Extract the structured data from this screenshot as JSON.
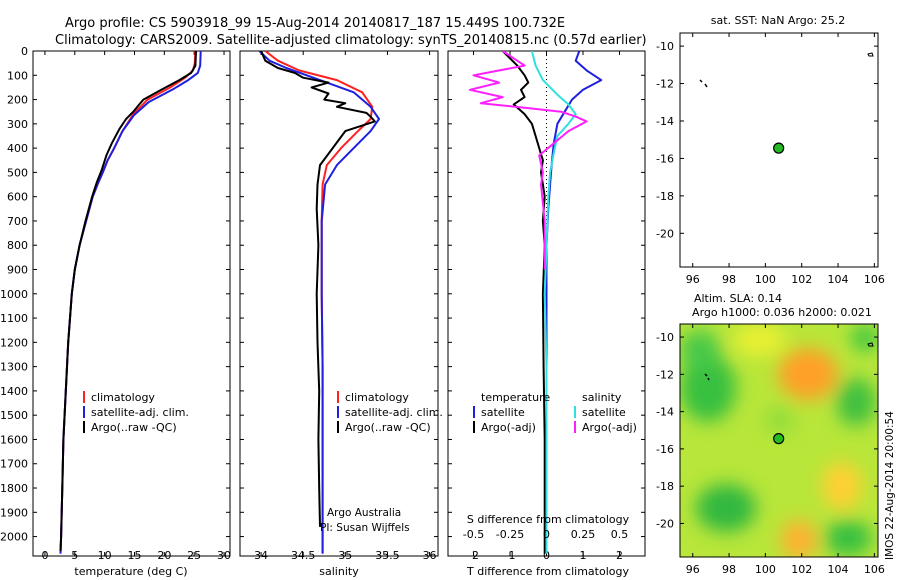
{
  "title": {
    "line1": "Argo profile: CS 5903918_99 15-Aug-2014 20140817_187 15.449S 100.732E",
    "line2": "Climatology: CARS2009. Satellite-adjusted climatology: synTS_20140815.nc (0.57d earlier)"
  },
  "colors": {
    "climatology": "#ff2020",
    "satellite": "#1f1fe0",
    "argo": "#000000",
    "sal_satellite": "#30e0e0",
    "sal_argo": "#ff20ff",
    "argo_marker": "#22bb22"
  },
  "chart_data": [
    {
      "id": "temperature",
      "type": "line",
      "xlabel": "temperature (deg C)",
      "ylabel": "",
      "xlim": [
        -2,
        31
      ],
      "ylim": [
        2080,
        0
      ],
      "xticks": [
        "0",
        "5",
        "10",
        "15",
        "20",
        "25",
        "30"
      ],
      "yticks": [
        "0",
        "100",
        "200",
        "300",
        "400",
        "500",
        "600",
        "700",
        "800",
        "900",
        "1000",
        "1100",
        "1200",
        "1300",
        "1400",
        "1500",
        "1600",
        "1700",
        "1800",
        "1900",
        "2000"
      ],
      "legend": [
        "climatology",
        "satellite-adj. clim.",
        "Argo(..raw -QC)"
      ],
      "series": [
        {
          "name": "climatology",
          "color_key": "climatology",
          "x": [
            25.2,
            25.1,
            24.8,
            23.5,
            21.0,
            17.2,
            14.8,
            13.0,
            11.6,
            10.5,
            9.7,
            8.8,
            8.0,
            6.9,
            5.8,
            5.0,
            4.5,
            3.9,
            3.5,
            3.1,
            2.9,
            2.7,
            2.6
          ],
          "y": [
            0,
            50,
            80,
            110,
            150,
            200,
            260,
            330,
            400,
            450,
            500,
            550,
            600,
            700,
            800,
            900,
            1000,
            1200,
            1400,
            1600,
            1800,
            2000,
            2070
          ]
        },
        {
          "name": "satellite-adj. clim.",
          "color_key": "satellite",
          "x": [
            26.1,
            26.0,
            25.6,
            24.0,
            21.3,
            17.4,
            14.9,
            13.0,
            11.6,
            10.5,
            9.7,
            8.8,
            8.0,
            6.9,
            5.8,
            5.0,
            4.5,
            3.9,
            3.5,
            3.1,
            2.9,
            2.7,
            2.6
          ],
          "y": [
            0,
            60,
            90,
            120,
            160,
            210,
            265,
            330,
            400,
            450,
            500,
            550,
            600,
            700,
            800,
            900,
            1000,
            1200,
            1400,
            1600,
            1800,
            2000,
            2070
          ]
        },
        {
          "name": "Argo(..raw -QC)",
          "color_key": "argo",
          "x": [
            25.3,
            25.2,
            24.5,
            22.5,
            19.5,
            16.5,
            15.8,
            14.8,
            13.6,
            12.5,
            11.2,
            10.3,
            9.5,
            8.7,
            7.9,
            6.8,
            5.8,
            5.0,
            4.5,
            3.9,
            3.5,
            3.1,
            2.9,
            2.7,
            2.6
          ],
          "y": [
            0,
            60,
            90,
            120,
            160,
            200,
            220,
            250,
            280,
            320,
            380,
            430,
            490,
            540,
            600,
            700,
            800,
            900,
            1000,
            1200,
            1400,
            1600,
            1800,
            2000,
            2060
          ]
        }
      ]
    },
    {
      "id": "salinity",
      "type": "line",
      "xlabel": "salinity",
      "ylabel": "",
      "xlim": [
        33.75,
        36.1
      ],
      "ylim": [
        2080,
        0
      ],
      "xticks": [
        "34",
        "34.5",
        "35",
        "35.5",
        "36"
      ],
      "legend": [
        "climatology",
        "satellite-adj. clim.",
        "Argo(..raw -QC)"
      ],
      "annotations": [
        "Argo Australia",
        "PI: Susan Wijffels"
      ],
      "series": [
        {
          "name": "climatology",
          "color_key": "climatology",
          "x": [
            34.05,
            34.2,
            34.45,
            34.9,
            35.2,
            35.32,
            35.3,
            35.15,
            34.95,
            34.78,
            34.73,
            34.72,
            34.72,
            34.73,
            34.73,
            34.73,
            34.73
          ],
          "y": [
            0,
            40,
            80,
            120,
            170,
            230,
            280,
            330,
            400,
            470,
            550,
            700,
            1000,
            1300,
            1600,
            1900,
            2070
          ]
        },
        {
          "name": "satellite-adj. clim.",
          "color_key": "satellite",
          "x": [
            33.98,
            34.1,
            34.3,
            34.7,
            35.1,
            35.3,
            35.4,
            35.3,
            35.1,
            34.9,
            34.76,
            34.72,
            34.72,
            34.73,
            34.73,
            34.73,
            34.73
          ],
          "y": [
            0,
            40,
            70,
            120,
            170,
            230,
            280,
            330,
            400,
            470,
            550,
            700,
            1000,
            1300,
            1600,
            1900,
            2070
          ]
        },
        {
          "name": "Argo(..raw -QC)",
          "color_key": "argo",
          "x": [
            34.0,
            34.05,
            34.2,
            34.4,
            34.5,
            34.8,
            34.6,
            34.8,
            34.75,
            35.0,
            34.9,
            35.25,
            35.3,
            35.35,
            35.0,
            34.85,
            34.7,
            34.67,
            34.66,
            34.68,
            34.66,
            34.67,
            34.69,
            34.68,
            34.69,
            34.7
          ],
          "y": [
            0,
            40,
            70,
            90,
            110,
            130,
            150,
            175,
            200,
            215,
            230,
            255,
            270,
            290,
            330,
            400,
            470,
            550,
            650,
            800,
            1000,
            1200,
            1400,
            1600,
            1800,
            1960
          ]
        }
      ]
    },
    {
      "id": "differences",
      "type": "line",
      "xlabel": "T difference from climatology",
      "xlabel_top": "S difference from climatology",
      "ylabel": "",
      "xlim": [
        -2.7,
        2.7
      ],
      "ylim": [
        2080,
        0
      ],
      "xticks": [
        "-2",
        "-1",
        "0",
        "1",
        "2"
      ],
      "xticks_top": [
        "-0.5",
        "-0.25",
        "0",
        "0.25",
        "0.5"
      ],
      "legend": {
        "temperature_heading": "temperature",
        "salinity_heading": "salinity",
        "t_items": [
          "satellite",
          "Argo(-adj)"
        ],
        "s_items": [
          "satellite",
          "Argo(-adj)"
        ]
      },
      "series": [
        {
          "name": "T satellite",
          "color_key": "satellite",
          "x": [
            0.9,
            0.8,
            1.1,
            1.5,
            1.0,
            0.7,
            0.5,
            0.3,
            0.2,
            0.15,
            0.1,
            0.05,
            0.0,
            0.0,
            0.0,
            0.0,
            0.0
          ],
          "y": [
            0,
            40,
            80,
            120,
            160,
            200,
            250,
            300,
            380,
            450,
            550,
            650,
            800,
            1000,
            1400,
            1800,
            2070
          ]
        },
        {
          "name": "T Argo(-adj)",
          "color_key": "argo",
          "x": [
            -1.2,
            -0.8,
            -0.6,
            -0.5,
            -0.7,
            -0.6,
            -0.9,
            -0.6,
            -0.4,
            -0.3,
            -0.2,
            -0.1,
            -0.15,
            -0.1,
            -0.05,
            -0.1,
            -0.05,
            -0.1,
            -0.08,
            -0.05,
            -0.05,
            -0.05
          ],
          "y": [
            0,
            60,
            100,
            130,
            160,
            190,
            220,
            260,
            300,
            350,
            400,
            450,
            500,
            550,
            600,
            700,
            800,
            1000,
            1300,
            1600,
            1800,
            2070
          ]
        },
        {
          "name": "S satellite",
          "color_key": "sal_satellite",
          "x": [
            -0.4,
            -0.3,
            -0.1,
            0.3,
            0.6,
            0.8,
            0.6,
            0.3,
            0.2,
            0.1,
            0.05,
            0.0,
            -0.05,
            0.0,
            0.0,
            0.0
          ],
          "y": [
            0,
            60,
            120,
            180,
            220,
            260,
            300,
            350,
            420,
            500,
            600,
            800,
            1000,
            1300,
            1700,
            2070
          ]
        },
        {
          "name": "S Argo(-adj)",
          "color_key": "sal_argo",
          "x": [
            -1.2,
            -0.6,
            -2.0,
            -1.3,
            -2.1,
            -1.2,
            -1.8,
            -0.5,
            0.4,
            0.8,
            1.1,
            0.6,
            0.2,
            -0.2,
            -0.1,
            -0.15,
            -0.05,
            -0.05
          ],
          "y": [
            0,
            60,
            100,
            130,
            160,
            190,
            215,
            235,
            250,
            270,
            290,
            330,
            380,
            430,
            500,
            550,
            700,
            900
          ]
        }
      ]
    },
    {
      "id": "sst_map",
      "type": "scatter",
      "title": "sat. SST: NaN Argo: 25.2",
      "xlim": [
        95.3,
        106.2
      ],
      "ylim": [
        -21.8,
        -9.3
      ],
      "xticks": [
        "96",
        "98",
        "100",
        "102",
        "104",
        "106"
      ],
      "yticks": [
        "-10",
        "-12",
        "-14",
        "-16",
        "-18",
        "-20"
      ],
      "points": [
        {
          "x": 100.732,
          "y": -15.449
        }
      ]
    },
    {
      "id": "sla_map",
      "type": "heatmap",
      "title_line1": "Altim. SLA: 0.14",
      "title_line2": "Argo h1000: 0.036 h2000: 0.021",
      "xlim": [
        95.3,
        106.2
      ],
      "ylim": [
        -21.8,
        -9.3
      ],
      "xticks": [
        "96",
        "98",
        "100",
        "102",
        "104",
        "106"
      ],
      "yticks": [
        "-10",
        "-12",
        "-14",
        "-16",
        "-18",
        "-20"
      ],
      "points": [
        {
          "x": 100.732,
          "y": -15.449
        }
      ],
      "side_label": "IMOS 22-Aug-2014 20:00:54"
    }
  ]
}
